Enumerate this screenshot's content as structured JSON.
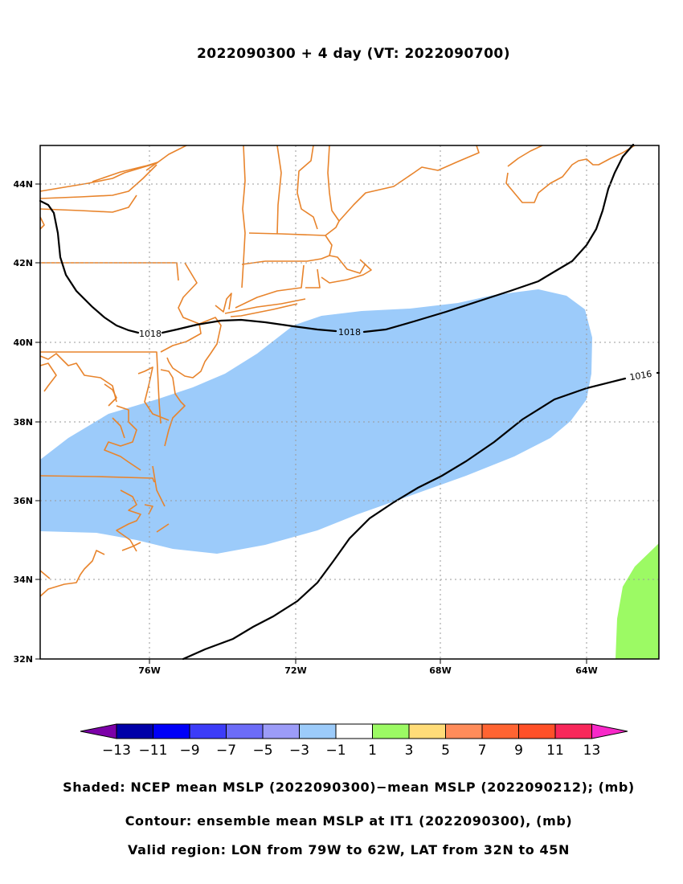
{
  "title": "2022090300 + 4 day (VT: 2022090700)",
  "map": {
    "lon_ticks": [
      "76W",
      "72W",
      "68W",
      "64W"
    ],
    "lat_ticks": [
      "44N",
      "42N",
      "40N",
      "38N",
      "36N",
      "34N",
      "32N"
    ],
    "extent": {
      "lon": [
        -79,
        -62
      ],
      "lat": [
        32,
        45
      ]
    },
    "grid": "dotted",
    "coastline_color": "#e8842c",
    "contour_labels": [
      "1018",
      "1018",
      "1016"
    ],
    "shading_colors": {
      "negative_1_to_3": "#9ccbfa",
      "positive_1_to_3": "#9cfa64"
    }
  },
  "colorbar": {
    "labels": [
      "-13",
      "-11",
      "-9",
      "-7",
      "-5",
      "-3",
      "-1",
      "1",
      "3",
      "5",
      "7",
      "9",
      "11",
      "13"
    ],
    "colors": [
      "#7c00a8",
      "#0000a8",
      "#0000f8",
      "#3c3cf8",
      "#6c6cf8",
      "#9c9cf8",
      "#9ccbfa",
      "#ffffff",
      "#9cfa64",
      "#ffdc78",
      "#ff8c5a",
      "#ff6432",
      "#ff5028",
      "#f8285a",
      "#f828c8"
    ]
  },
  "captions": {
    "shaded": "Shaded: NCEP mean MSLP (2022090300)−mean MSLP (2022090212); (mb)",
    "contour": "Contour: ensemble mean MSLP at IT1 (2022090300), (mb)",
    "region": "Valid region: LON from 79W to 62W, LAT from 32N to 45N"
  }
}
